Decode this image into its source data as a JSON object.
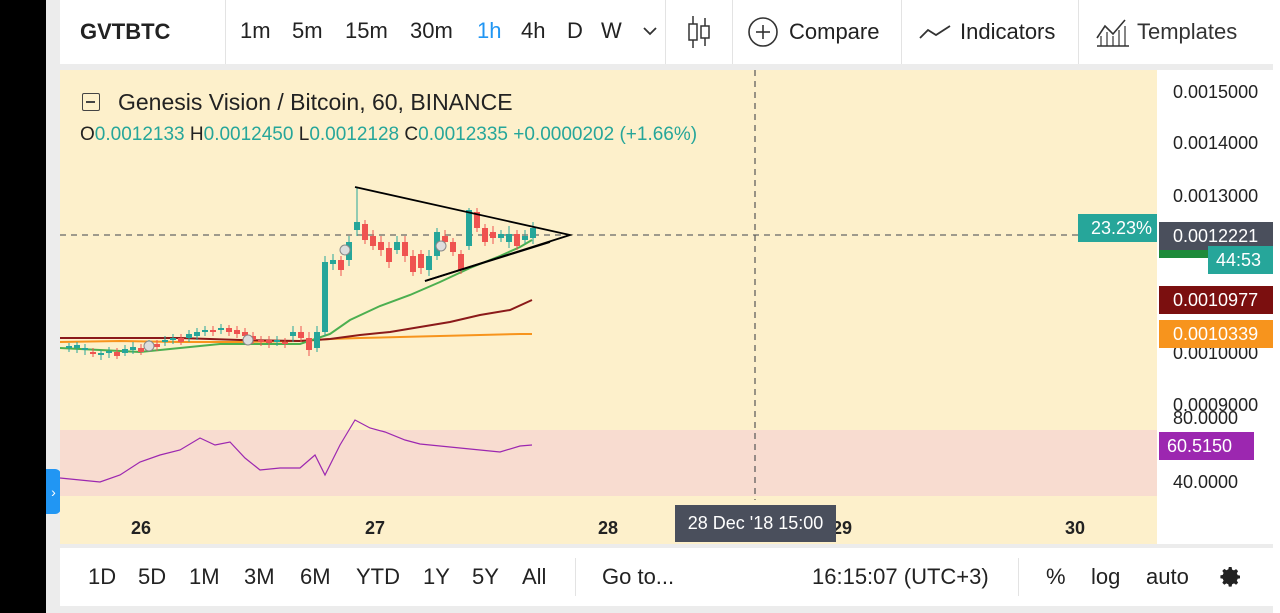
{
  "toolbar": {
    "symbol": "GVTBTC",
    "timeframes": [
      "1m",
      "5m",
      "15m",
      "30m",
      "1h",
      "4h",
      "D",
      "W"
    ],
    "active_timeframe": "1h",
    "compare_label": "Compare",
    "indicators_label": "Indicators",
    "templates_label": "Templates"
  },
  "legend": {
    "title": "Genesis Vision / Bitcoin, 60, BINANCE",
    "o_label": "O",
    "o_value": "0.0012133",
    "h_label": "H",
    "h_value": "0.0012450",
    "l_label": "L",
    "l_value": "0.0012128",
    "c_label": "C",
    "c_value": "0.0012335",
    "change": "+0.0000202 (+1.66%)"
  },
  "price_axis": {
    "labels": [
      "0.0015000",
      "0.0014000",
      "0.0013000",
      "0.0010000",
      "0.0009000"
    ],
    "percent_tag": "23.23%",
    "last_price": "0.0012221",
    "countdown": "44:53",
    "ma_slow": "0.0010977",
    "ma_long": "0.0010339",
    "rsi_value": "60.5150",
    "rsi_top": "80.0000",
    "rsi_bottom": "40.0000"
  },
  "time_axis": {
    "labels": [
      "26",
      "27",
      "28",
      "29",
      "30"
    ],
    "crosshair": "28 Dec '18   15:00"
  },
  "bottom": {
    "ranges": [
      "1D",
      "5D",
      "1M",
      "3M",
      "6M",
      "YTD",
      "1Y",
      "5Y",
      "All"
    ],
    "goto": "Go to...",
    "clock": "16:15:07 (UTC+3)",
    "percent": "%",
    "log": "log",
    "auto": "auto"
  },
  "colors": {
    "up": "#26a69a",
    "down": "#ef5350",
    "pane_bg": "#fdf0cb",
    "rsi_bg": "#f8dcd0",
    "ma_fast": "#4caf50",
    "ma_slow": "#8b1a1a",
    "ma_long": "#f7941d",
    "rsi_line": "#9c27b0",
    "accent": "#2196f3"
  }
}
